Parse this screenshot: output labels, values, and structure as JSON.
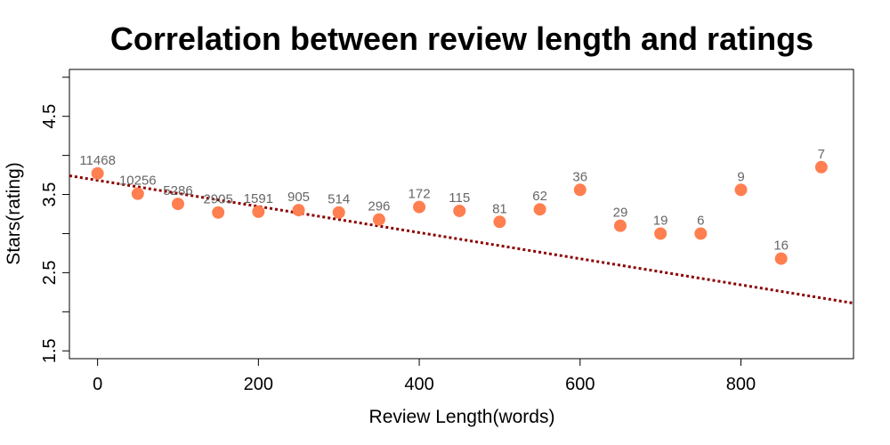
{
  "chart_data": {
    "type": "scatter",
    "title": "Correlation between review length and ratings",
    "xlabel": "Review Length(words)",
    "ylabel": "Stars(rating)",
    "xlim": [
      -35,
      940
    ],
    "ylim": [
      1.4,
      5.1
    ],
    "xticks": [
      0,
      200,
      400,
      600,
      800
    ],
    "xtick_labels": [
      "0",
      "200",
      "400",
      "600",
      "800"
    ],
    "yticks": [
      1.5,
      2.0,
      2.5,
      3.0,
      3.5,
      4.0,
      4.5,
      5.0
    ],
    "ytick_labels": [
      "1.5",
      "",
      "2.5",
      "",
      "3.5",
      "",
      "4.5",
      ""
    ],
    "points": [
      {
        "x": 0,
        "y": 3.77,
        "label": "11468"
      },
      {
        "x": 50,
        "y": 3.51,
        "label": "10256"
      },
      {
        "x": 100,
        "y": 3.38,
        "label": "5286"
      },
      {
        "x": 150,
        "y": 3.27,
        "label": "2905"
      },
      {
        "x": 200,
        "y": 3.28,
        "label": "1591"
      },
      {
        "x": 250,
        "y": 3.3,
        "label": "905"
      },
      {
        "x": 300,
        "y": 3.27,
        "label": "514"
      },
      {
        "x": 350,
        "y": 3.18,
        "label": "296"
      },
      {
        "x": 400,
        "y": 3.34,
        "label": "172"
      },
      {
        "x": 450,
        "y": 3.29,
        "label": "115"
      },
      {
        "x": 500,
        "y": 3.15,
        "label": "81"
      },
      {
        "x": 550,
        "y": 3.31,
        "label": "62"
      },
      {
        "x": 600,
        "y": 3.56,
        "label": "36"
      },
      {
        "x": 650,
        "y": 3.1,
        "label": "29"
      },
      {
        "x": 700,
        "y": 3.0,
        "label": "19"
      },
      {
        "x": 750,
        "y": 3.0,
        "label": "6"
      },
      {
        "x": 800,
        "y": 3.56,
        "label": "9"
      },
      {
        "x": 850,
        "y": 2.68,
        "label": "16"
      },
      {
        "x": 900,
        "y": 3.85,
        "label": "7"
      }
    ],
    "trend_line": {
      "x": [
        -35,
        940
      ],
      "y": [
        3.74,
        2.11
      ],
      "style": "dotted"
    },
    "colors": {
      "point": "#FF7F50",
      "trend": "#8B0000",
      "label": "#666666"
    }
  }
}
